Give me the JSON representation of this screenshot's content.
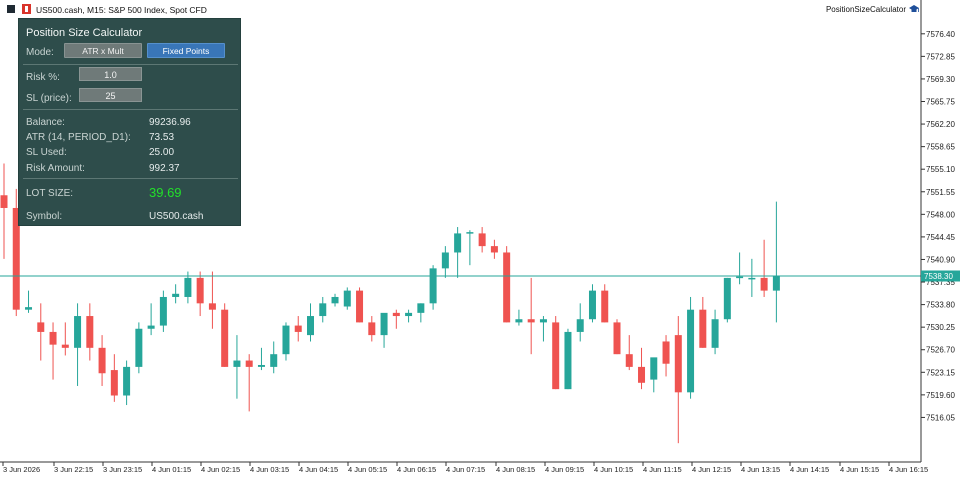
{
  "header": {
    "title": "US500.cash, M15:  S&P 500 Index, Spot CFD",
    "ea_name": "PositionSizeCalculator"
  },
  "panel": {
    "title": "Position Size Calculator",
    "mode_label": "Mode:",
    "mode_btn_atr": "ATR x Mult",
    "mode_btn_fixed": "Fixed Points",
    "active_mode": "Fixed Points",
    "risk_label": "Risk %:",
    "risk_value": "1.0",
    "sl_label": "SL (price):",
    "sl_value": "25",
    "balance_label": "Balance:",
    "balance_value": "99236.96",
    "atr_label": "ATR (14, PERIOD_D1):",
    "atr_value": "73.53",
    "sl_used_label": "SL Used:",
    "sl_used_value": "25.00",
    "risk_amount_label": "Risk Amount:",
    "risk_amount_value": "992.37",
    "lot_label": "LOT SIZE:",
    "lot_value": "39.69",
    "symbol_label": "Symbol:",
    "symbol_value": "US500.cash"
  },
  "colors": {
    "bull": "#26a69a",
    "bear": "#ef5350",
    "panel_bg": "#2e4d4b",
    "lot_value": "#22e02a",
    "price_line": "#26a69a"
  },
  "chart_data": {
    "type": "candlestick",
    "y_ticks": [
      "7576.40",
      "7572.85",
      "7569.30",
      "7565.75",
      "7562.20",
      "7558.65",
      "7555.10",
      "7551.55",
      "7548.00",
      "7544.45",
      "7540.90",
      "7537.35",
      "7533.80",
      "7530.25",
      "7526.70",
      "7523.15",
      "7519.60",
      "7516.05"
    ],
    "ylim": [
      7512.5,
      7579.2
    ],
    "x_ticks": [
      "3 Jun 2026",
      "3 Jun 22:15",
      "3 Jun 23:15",
      "4 Jun 01:15",
      "4 Jun 02:15",
      "4 Jun 03:15",
      "4 Jun 04:15",
      "4 Jun 05:15",
      "4 Jun 06:15",
      "4 Jun 07:15",
      "4 Jun 08:15",
      "4 Jun 09:15",
      "4 Jun 10:15",
      "4 Jun 11:15",
      "4 Jun 12:15",
      "4 Jun 13:15",
      "4 Jun 14:15",
      "4 Jun 15:15",
      "4 Jun 16:15"
    ],
    "current_price": "7538.30",
    "candles": [
      {
        "o": 7551,
        "h": 7556,
        "l": 7541,
        "c": 7549
      },
      {
        "o": 7549,
        "h": 7552,
        "l": 7532,
        "c": 7533
      },
      {
        "o": 7533,
        "h": 7536,
        "l": 7532.5,
        "c": 7533.4
      },
      {
        "o": 7531,
        "h": 7534,
        "l": 7525,
        "c": 7529.5
      },
      {
        "o": 7529.5,
        "h": 7531,
        "l": 7522,
        "c": 7527.5
      },
      {
        "o": 7527.5,
        "h": 7531,
        "l": 7525.8,
        "c": 7527
      },
      {
        "o": 7527,
        "h": 7534,
        "l": 7521,
        "c": 7532
      },
      {
        "o": 7532,
        "h": 7534,
        "l": 7525,
        "c": 7527
      },
      {
        "o": 7527,
        "h": 7529,
        "l": 7521,
        "c": 7523
      },
      {
        "o": 7523.5,
        "h": 7526,
        "l": 7518.5,
        "c": 7519.5
      },
      {
        "o": 7519.5,
        "h": 7525,
        "l": 7518,
        "c": 7524
      },
      {
        "o": 7524,
        "h": 7531,
        "l": 7523,
        "c": 7530
      },
      {
        "o": 7530,
        "h": 7534,
        "l": 7529,
        "c": 7530.5
      },
      {
        "o": 7530.5,
        "h": 7536,
        "l": 7529.5,
        "c": 7535
      },
      {
        "o": 7535,
        "h": 7537,
        "l": 7534,
        "c": 7535.5
      },
      {
        "o": 7535,
        "h": 7539,
        "l": 7534,
        "c": 7538
      },
      {
        "o": 7538,
        "h": 7539,
        "l": 7532,
        "c": 7534
      },
      {
        "o": 7534,
        "h": 7539,
        "l": 7530,
        "c": 7533
      },
      {
        "o": 7533,
        "h": 7534,
        "l": 7524,
        "c": 7524
      },
      {
        "o": 7524,
        "h": 7529,
        "l": 7519,
        "c": 7525
      },
      {
        "o": 7525,
        "h": 7526,
        "l": 7517,
        "c": 7524
      },
      {
        "o": 7524,
        "h": 7527,
        "l": 7523.5,
        "c": 7524.3
      },
      {
        "o": 7524,
        "h": 7528,
        "l": 7523,
        "c": 7526
      },
      {
        "o": 7526,
        "h": 7531,
        "l": 7525,
        "c": 7530.5
      },
      {
        "o": 7530.5,
        "h": 7532,
        "l": 7528,
        "c": 7529.5
      },
      {
        "o": 7529,
        "h": 7534,
        "l": 7528,
        "c": 7532
      },
      {
        "o": 7532,
        "h": 7535,
        "l": 7531,
        "c": 7534
      },
      {
        "o": 7534,
        "h": 7535.5,
        "l": 7533.5,
        "c": 7535
      },
      {
        "o": 7533.5,
        "h": 7536.5,
        "l": 7533,
        "c": 7536
      },
      {
        "o": 7536,
        "h": 7536.5,
        "l": 7531,
        "c": 7531
      },
      {
        "o": 7531,
        "h": 7532,
        "l": 7528,
        "c": 7529
      },
      {
        "o": 7529,
        "h": 7532,
        "l": 7527,
        "c": 7532.5
      },
      {
        "o": 7532.5,
        "h": 7533,
        "l": 7530,
        "c": 7532
      },
      {
        "o": 7532,
        "h": 7533,
        "l": 7531,
        "c": 7532.5
      },
      {
        "o": 7532.5,
        "h": 7534,
        "l": 7531,
        "c": 7534
      },
      {
        "o": 7534,
        "h": 7540,
        "l": 7533,
        "c": 7539.5
      },
      {
        "o": 7539.5,
        "h": 7543,
        "l": 7538,
        "c": 7542
      },
      {
        "o": 7542,
        "h": 7546,
        "l": 7538,
        "c": 7545
      },
      {
        "o": 7545,
        "h": 7545.5,
        "l": 7540,
        "c": 7545.2
      },
      {
        "o": 7545,
        "h": 7546,
        "l": 7542,
        "c": 7543
      },
      {
        "o": 7543,
        "h": 7544,
        "l": 7541,
        "c": 7542
      },
      {
        "o": 7542,
        "h": 7543,
        "l": 7531,
        "c": 7531
      },
      {
        "o": 7531,
        "h": 7533,
        "l": 7530.5,
        "c": 7531.5
      },
      {
        "o": 7531.5,
        "h": 7538,
        "l": 7526,
        "c": 7531
      },
      {
        "o": 7531,
        "h": 7532,
        "l": 7528,
        "c": 7531.5
      },
      {
        "o": 7531,
        "h": 7532,
        "l": 7520.5,
        "c": 7520.5
      },
      {
        "o": 7520.5,
        "h": 7530,
        "l": 7520.5,
        "c": 7529.5
      },
      {
        "o": 7529.5,
        "h": 7534,
        "l": 7528,
        "c": 7531.5
      },
      {
        "o": 7531.5,
        "h": 7537,
        "l": 7531,
        "c": 7536
      },
      {
        "o": 7536,
        "h": 7537,
        "l": 7531,
        "c": 7531
      },
      {
        "o": 7531,
        "h": 7531.5,
        "l": 7526,
        "c": 7526
      },
      {
        "o": 7526,
        "h": 7529,
        "l": 7523.5,
        "c": 7524
      },
      {
        "o": 7524,
        "h": 7527,
        "l": 7520.5,
        "c": 7521.5
      },
      {
        "o": 7522,
        "h": 7525,
        "l": 7520,
        "c": 7525.5
      },
      {
        "o": 7528,
        "h": 7529,
        "l": 7522.5,
        "c": 7524.5
      },
      {
        "o": 7529,
        "h": 7532,
        "l": 7512,
        "c": 7520
      },
      {
        "o": 7520,
        "h": 7535,
        "l": 7519,
        "c": 7533
      },
      {
        "o": 7533,
        "h": 7535,
        "l": 7527,
        "c": 7527
      },
      {
        "o": 7527,
        "h": 7533,
        "l": 7526,
        "c": 7531.5
      },
      {
        "o": 7531.5,
        "h": 7538,
        "l": 7531,
        "c": 7538
      },
      {
        "o": 7538,
        "h": 7542,
        "l": 7537,
        "c": 7538.2
      },
      {
        "o": 7538,
        "h": 7541,
        "l": 7535,
        "c": 7538
      },
      {
        "o": 7538,
        "h": 7544,
        "l": 7535,
        "c": 7536
      },
      {
        "o": 7536,
        "h": 7550,
        "l": 7531,
        "c": 7538.3
      }
    ]
  }
}
